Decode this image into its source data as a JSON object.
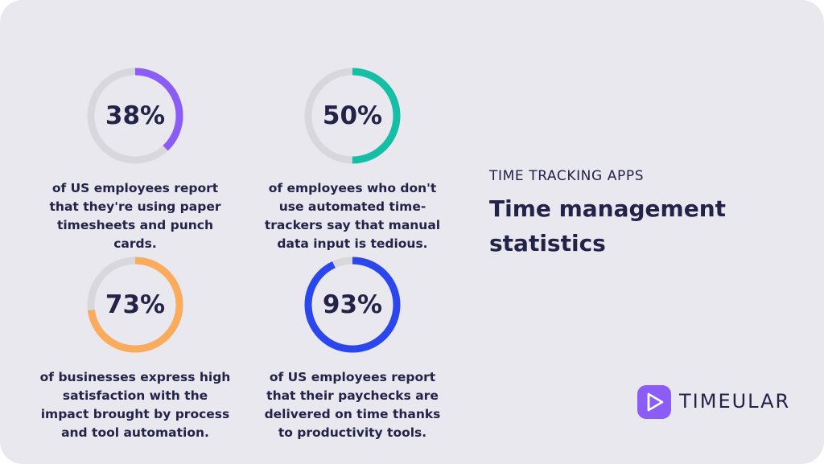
{
  "chart_data": [
    {
      "type": "pie",
      "values": [
        38
      ],
      "label": "38%",
      "description": "of US employees report that they're using paper timesheets and punch cards.",
      "color": "#8b5cf6"
    },
    {
      "type": "pie",
      "values": [
        50
      ],
      "label": "50%",
      "description": "of employees who don't use automated time-trackers say that manual data input is tedious.",
      "color": "#14bfa6"
    },
    {
      "type": "pie",
      "values": [
        73
      ],
      "label": "73%",
      "description": "of businesses express high satisfaction with the impact brought by process and tool automation.",
      "color": "#fbab5c"
    },
    {
      "type": "pie",
      "values": [
        93
      ],
      "label": "93%",
      "description": "of US employees report that their paychecks are delivered on time thanks to productivity tools.",
      "color": "#2a47ee"
    }
  ],
  "header": {
    "eyebrow": "TIME TRACKING APPS",
    "title": "Time management statistics"
  },
  "brand": {
    "name": "TIMEULAR",
    "logo_icon": "play-triangle-icon"
  },
  "colors": {
    "background": "#e9e8ef",
    "track": "#d8d8dc",
    "text": "#23234a"
  }
}
